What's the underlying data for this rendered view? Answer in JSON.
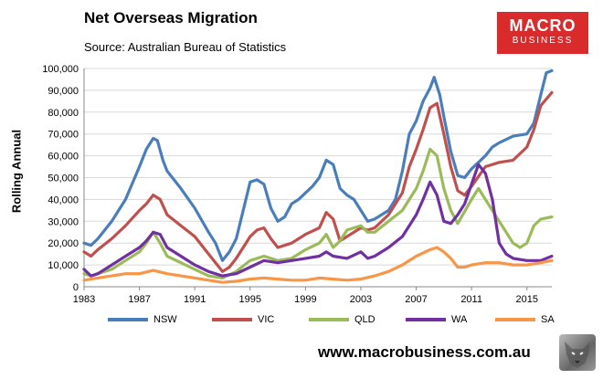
{
  "header": {
    "title": "Net Overseas Migration",
    "subtitle": "Source: Australian Bureau of Statistics"
  },
  "logo": {
    "line1": "MACRO",
    "line2": "BUSINESS"
  },
  "footer": {
    "website": "www.macrobusiness.com.au"
  },
  "colors": {
    "NSW": "#4a7ebb",
    "VIC": "#c0504d",
    "QLD": "#9bbb59",
    "WA": "#7030a0",
    "SA": "#f79646",
    "logo_bg": "#d92b2b"
  },
  "chart_data": {
    "type": "line",
    "ylabel": "Rolling Annual",
    "xlabel": "",
    "xlim": [
      1983,
      2016.8
    ],
    "ylim": [
      0,
      100000
    ],
    "x_ticks": [
      "1983",
      "1987",
      "1991",
      "1995",
      "1999",
      "2003",
      "2007",
      "2011",
      "2015"
    ],
    "y_ticks": [
      "0",
      "10,000",
      "20,000",
      "30,000",
      "40,000",
      "50,000",
      "60,000",
      "70,000",
      "80,000",
      "90,000",
      "100,000"
    ],
    "grid": true,
    "legend": "bottom",
    "series": [
      {
        "name": "NSW",
        "points": [
          [
            1983,
            20000
          ],
          [
            1983.5,
            19000
          ],
          [
            1984,
            22000
          ],
          [
            1985,
            30000
          ],
          [
            1986,
            40000
          ],
          [
            1987,
            55000
          ],
          [
            1987.5,
            63000
          ],
          [
            1988,
            68000
          ],
          [
            1988.3,
            67000
          ],
          [
            1988.7,
            58000
          ],
          [
            1989,
            53000
          ],
          [
            1990,
            45000
          ],
          [
            1991,
            36000
          ],
          [
            1992,
            25000
          ],
          [
            1992.5,
            20000
          ],
          [
            1993,
            12000
          ],
          [
            1993.5,
            16000
          ],
          [
            1994,
            22000
          ],
          [
            1994.5,
            35000
          ],
          [
            1995,
            48000
          ],
          [
            1995.5,
            49000
          ],
          [
            1996,
            47000
          ],
          [
            1996.5,
            36000
          ],
          [
            1997,
            30000
          ],
          [
            1997.5,
            32000
          ],
          [
            1998,
            38000
          ],
          [
            1998.5,
            40000
          ],
          [
            1999,
            43000
          ],
          [
            1999.5,
            46000
          ],
          [
            2000,
            50000
          ],
          [
            2000.5,
            58000
          ],
          [
            2001,
            56000
          ],
          [
            2001.5,
            45000
          ],
          [
            2002,
            42000
          ],
          [
            2002.5,
            40000
          ],
          [
            2003,
            35000
          ],
          [
            2003.5,
            30000
          ],
          [
            2004,
            31000
          ],
          [
            2005,
            35000
          ],
          [
            2005.5,
            40000
          ],
          [
            2006,
            53000
          ],
          [
            2006.5,
            70000
          ],
          [
            2007,
            76000
          ],
          [
            2007.5,
            85000
          ],
          [
            2008,
            91000
          ],
          [
            2008.3,
            96000
          ],
          [
            2008.7,
            88000
          ],
          [
            2009,
            78000
          ],
          [
            2009.5,
            62000
          ],
          [
            2010,
            51000
          ],
          [
            2010.5,
            50000
          ],
          [
            2011,
            54000
          ],
          [
            2012,
            60000
          ],
          [
            2012.5,
            64000
          ],
          [
            2013,
            66000
          ],
          [
            2014,
            69000
          ],
          [
            2015,
            70000
          ],
          [
            2015.5,
            75000
          ],
          [
            2016,
            88000
          ],
          [
            2016.4,
            98000
          ],
          [
            2016.8,
            99000
          ]
        ]
      },
      {
        "name": "VIC",
        "points": [
          [
            1983,
            16000
          ],
          [
            1983.5,
            14000
          ],
          [
            1984,
            17000
          ],
          [
            1985,
            22000
          ],
          [
            1986,
            28000
          ],
          [
            1987,
            35000
          ],
          [
            1987.5,
            38000
          ],
          [
            1988,
            42000
          ],
          [
            1988.5,
            40000
          ],
          [
            1989,
            33000
          ],
          [
            1990,
            28000
          ],
          [
            1991,
            23000
          ],
          [
            1992,
            15000
          ],
          [
            1993,
            7000
          ],
          [
            1993.5,
            9000
          ],
          [
            1994,
            13000
          ],
          [
            1994.5,
            18000
          ],
          [
            1995,
            23000
          ],
          [
            1995.5,
            26000
          ],
          [
            1996,
            27000
          ],
          [
            1996.5,
            22000
          ],
          [
            1997,
            18000
          ],
          [
            1998,
            20000
          ],
          [
            1999,
            24000
          ],
          [
            2000,
            27000
          ],
          [
            2000.5,
            34000
          ],
          [
            2001,
            31000
          ],
          [
            2001.5,
            21000
          ],
          [
            2002,
            23000
          ],
          [
            2003,
            27000
          ],
          [
            2003.5,
            26000
          ],
          [
            2004,
            27000
          ],
          [
            2005,
            33000
          ],
          [
            2006,
            43000
          ],
          [
            2006.5,
            55000
          ],
          [
            2007,
            63000
          ],
          [
            2007.5,
            72000
          ],
          [
            2008,
            82000
          ],
          [
            2008.5,
            84000
          ],
          [
            2009,
            70000
          ],
          [
            2009.5,
            55000
          ],
          [
            2010,
            44000
          ],
          [
            2010.5,
            42000
          ],
          [
            2011,
            46000
          ],
          [
            2012,
            55000
          ],
          [
            2013,
            57000
          ],
          [
            2014,
            58000
          ],
          [
            2015,
            64000
          ],
          [
            2015.5,
            72000
          ],
          [
            2016,
            83000
          ],
          [
            2016.8,
            89000
          ]
        ]
      },
      {
        "name": "QLD",
        "points": [
          [
            1983,
            6000
          ],
          [
            1983.5,
            5000
          ],
          [
            1984,
            6000
          ],
          [
            1985,
            8000
          ],
          [
            1986,
            12000
          ],
          [
            1987,
            16000
          ],
          [
            1987.5,
            20000
          ],
          [
            1988,
            25000
          ],
          [
            1988.5,
            20000
          ],
          [
            1989,
            14000
          ],
          [
            1990,
            11000
          ],
          [
            1991,
            8000
          ],
          [
            1992,
            5000
          ],
          [
            1993,
            4000
          ],
          [
            1994,
            7000
          ],
          [
            1995,
            12000
          ],
          [
            1996,
            14000
          ],
          [
            1997,
            12000
          ],
          [
            1998,
            13000
          ],
          [
            1999,
            17000
          ],
          [
            2000,
            20000
          ],
          [
            2000.5,
            24000
          ],
          [
            2001,
            18000
          ],
          [
            2001.5,
            21000
          ],
          [
            2002,
            26000
          ],
          [
            2003,
            28000
          ],
          [
            2003.5,
            25000
          ],
          [
            2004,
            25000
          ],
          [
            2005,
            30000
          ],
          [
            2006,
            35000
          ],
          [
            2006.5,
            40000
          ],
          [
            2007,
            45000
          ],
          [
            2007.5,
            53000
          ],
          [
            2008,
            63000
          ],
          [
            2008.5,
            60000
          ],
          [
            2009,
            45000
          ],
          [
            2009.5,
            35000
          ],
          [
            2010,
            29000
          ],
          [
            2011,
            40000
          ],
          [
            2011.5,
            45000
          ],
          [
            2012,
            40000
          ],
          [
            2013,
            30000
          ],
          [
            2014,
            20000
          ],
          [
            2014.5,
            18000
          ],
          [
            2015,
            20000
          ],
          [
            2015.5,
            28000
          ],
          [
            2016,
            31000
          ],
          [
            2016.8,
            32000
          ]
        ]
      },
      {
        "name": "WA",
        "points": [
          [
            1983,
            8000
          ],
          [
            1983.5,
            5000
          ],
          [
            1984,
            6000
          ],
          [
            1985,
            10000
          ],
          [
            1986,
            14000
          ],
          [
            1987,
            18000
          ],
          [
            1987.5,
            21000
          ],
          [
            1988,
            25000
          ],
          [
            1988.5,
            24000
          ],
          [
            1989,
            18000
          ],
          [
            1990,
            14000
          ],
          [
            1991,
            10000
          ],
          [
            1992,
            7000
          ],
          [
            1993,
            5000
          ],
          [
            1994,
            6000
          ],
          [
            1995,
            9000
          ],
          [
            1996,
            12000
          ],
          [
            1997,
            11000
          ],
          [
            1998,
            12000
          ],
          [
            1999,
            13000
          ],
          [
            2000,
            14000
          ],
          [
            2000.5,
            16000
          ],
          [
            2001,
            14000
          ],
          [
            2002,
            13000
          ],
          [
            2003,
            16000
          ],
          [
            2003.5,
            13000
          ],
          [
            2004,
            14000
          ],
          [
            2005,
            18000
          ],
          [
            2006,
            23000
          ],
          [
            2006.5,
            28000
          ],
          [
            2007,
            33000
          ],
          [
            2007.5,
            40000
          ],
          [
            2008,
            48000
          ],
          [
            2008.5,
            42000
          ],
          [
            2009,
            30000
          ],
          [
            2009.5,
            29000
          ],
          [
            2010,
            33000
          ],
          [
            2010.5,
            38000
          ],
          [
            2011,
            47000
          ],
          [
            2011.5,
            56000
          ],
          [
            2012,
            52000
          ],
          [
            2012.5,
            40000
          ],
          [
            2013,
            20000
          ],
          [
            2013.5,
            15000
          ],
          [
            2014,
            13000
          ],
          [
            2015,
            12000
          ],
          [
            2016,
            12000
          ],
          [
            2016.8,
            14000
          ]
        ]
      },
      {
        "name": "SA",
        "points": [
          [
            1983,
            3000
          ],
          [
            1984,
            4000
          ],
          [
            1985,
            5000
          ],
          [
            1986,
            6000
          ],
          [
            1987,
            6000
          ],
          [
            1988,
            7500
          ],
          [
            1989,
            6000
          ],
          [
            1990,
            5000
          ],
          [
            1991,
            4000
          ],
          [
            1992,
            3000
          ],
          [
            1993,
            2000
          ],
          [
            1994,
            2500
          ],
          [
            1995,
            3500
          ],
          [
            1996,
            4000
          ],
          [
            1997,
            3500
          ],
          [
            1998,
            3000
          ],
          [
            1999,
            3000
          ],
          [
            2000,
            4000
          ],
          [
            2001,
            3500
          ],
          [
            2002,
            3000
          ],
          [
            2003,
            3500
          ],
          [
            2004,
            5000
          ],
          [
            2005,
            7000
          ],
          [
            2006,
            10000
          ],
          [
            2007,
            14000
          ],
          [
            2008,
            17000
          ],
          [
            2008.5,
            18000
          ],
          [
            2009,
            16000
          ],
          [
            2009.5,
            13000
          ],
          [
            2010,
            9000
          ],
          [
            2010.5,
            9000
          ],
          [
            2011,
            10000
          ],
          [
            2012,
            11000
          ],
          [
            2013,
            11000
          ],
          [
            2014,
            10000
          ],
          [
            2015,
            10000
          ],
          [
            2016,
            11000
          ],
          [
            2016.8,
            12000
          ]
        ]
      }
    ]
  }
}
